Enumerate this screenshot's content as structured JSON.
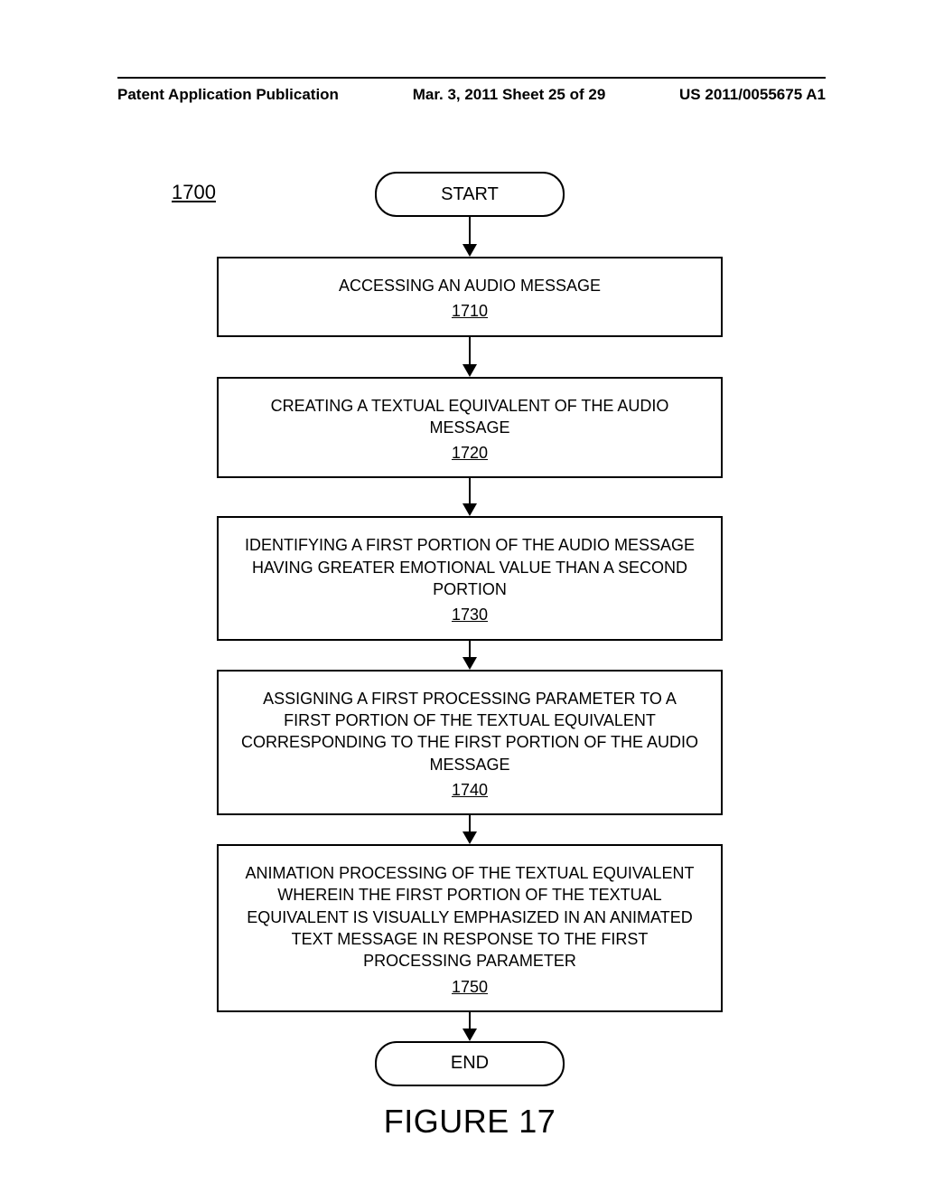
{
  "header": {
    "left": "Patent Application Publication",
    "center": "Mar. 3, 2011  Sheet 25 of 29",
    "right": "US 2011/0055675 A1"
  },
  "flowchart": {
    "ref": "1700",
    "start": "START",
    "end": "END",
    "caption": "FIGURE 17",
    "steps": [
      {
        "text": "ACCESSING AN AUDIO MESSAGE",
        "num": "1710"
      },
      {
        "text": "CREATING A TEXTUAL EQUIVALENT OF THE AUDIO MESSAGE",
        "num": "1720"
      },
      {
        "text": "IDENTIFYING A FIRST PORTION OF THE AUDIO MESSAGE HAVING GREATER EMOTIONAL VALUE THAN A SECOND PORTION",
        "num": "1730"
      },
      {
        "text": "ASSIGNING A FIRST PROCESSING PARAMETER TO A FIRST PORTION OF THE TEXTUAL EQUIVALENT CORRESPONDING TO THE FIRST PORTION OF THE AUDIO MESSAGE",
        "num": "1740"
      },
      {
        "text": "ANIMATION PROCESSING OF THE TEXTUAL EQUIVALENT WHEREIN THE FIRST PORTION OF THE TEXTUAL EQUIVALENT IS VISUALLY EMPHASIZED IN AN ANIMATED TEXT MESSAGE IN RESPONSE TO THE FIRST PROCESSING PARAMETER",
        "num": "1750"
      }
    ],
    "arrow_heights": [
      30,
      30,
      28,
      18,
      18,
      18
    ],
    "colors": {
      "stroke": "#000000",
      "bg": "#ffffff"
    }
  }
}
